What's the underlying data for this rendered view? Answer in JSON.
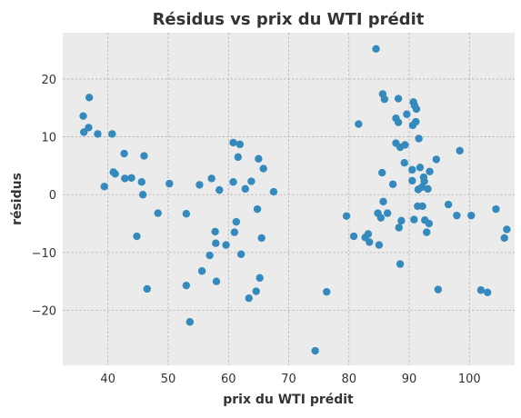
{
  "chart_data": {
    "type": "scatter",
    "title": "Résidus vs prix du WTI prédit",
    "xlabel": "prix du WTI prédit",
    "ylabel": "résidus",
    "xlim": [
      32.5,
      107.5
    ],
    "ylim": [
      -29.5,
      28
    ],
    "xticks": [
      40,
      50,
      60,
      70,
      80,
      90,
      100
    ],
    "yticks": [
      -20,
      -10,
      0,
      10,
      20
    ],
    "ytick_labels": [
      "−20",
      "−10",
      "0",
      "10",
      "20"
    ],
    "grid": true,
    "colors": {
      "background": "#ebebeb",
      "grid": "#b2b2b2",
      "point": "#348abd",
      "text": "#333333"
    },
    "series": [
      {
        "points": [
          [
            35.9,
            13.6
          ],
          [
            36.0,
            10.8
          ],
          [
            36.8,
            11.6
          ],
          [
            36.9,
            16.8
          ],
          [
            38.3,
            10.5
          ],
          [
            39.4,
            1.4
          ],
          [
            40.7,
            10.5
          ],
          [
            40.9,
            3.9
          ],
          [
            41.2,
            3.6
          ],
          [
            42.7,
            7.1
          ],
          [
            42.8,
            2.8
          ],
          [
            43.9,
            2.9
          ],
          [
            44.8,
            -7.2
          ],
          [
            45.6,
            2.2
          ],
          [
            45.8,
            0.0
          ],
          [
            46.0,
            6.7
          ],
          [
            46.5,
            -16.3
          ],
          [
            48.3,
            -3.2
          ],
          [
            50.2,
            1.9
          ],
          [
            53.0,
            -3.3
          ],
          [
            53.0,
            -15.7
          ],
          [
            53.6,
            -22.0
          ],
          [
            55.2,
            1.7
          ],
          [
            55.6,
            -13.2
          ],
          [
            56.9,
            -10.5
          ],
          [
            57.2,
            2.8
          ],
          [
            57.8,
            -6.4
          ],
          [
            57.9,
            -8.4
          ],
          [
            58.0,
            -15.0
          ],
          [
            58.5,
            0.8
          ],
          [
            59.6,
            -8.7
          ],
          [
            60.8,
            9.0
          ],
          [
            60.8,
            2.2
          ],
          [
            61.0,
            -6.5
          ],
          [
            61.3,
            -4.7
          ],
          [
            61.6,
            6.5
          ],
          [
            61.9,
            8.7
          ],
          [
            62.1,
            -10.3
          ],
          [
            62.8,
            1.0
          ],
          [
            63.4,
            -17.9
          ],
          [
            63.8,
            2.3
          ],
          [
            64.6,
            -16.7
          ],
          [
            64.8,
            -2.5
          ],
          [
            65.0,
            6.2
          ],
          [
            65.2,
            -14.4
          ],
          [
            65.5,
            -7.5
          ],
          [
            65.8,
            4.5
          ],
          [
            67.5,
            0.5
          ],
          [
            74.4,
            -27.0
          ],
          [
            76.3,
            -16.8
          ],
          [
            79.6,
            -3.7
          ],
          [
            80.8,
            -7.2
          ],
          [
            81.6,
            12.2
          ],
          [
            82.7,
            -7.4
          ],
          [
            83.2,
            -6.8
          ],
          [
            83.4,
            -8.2
          ],
          [
            84.5,
            25.2
          ],
          [
            84.8,
            -3.2
          ],
          [
            85.0,
            -8.7
          ],
          [
            85.3,
            -4.0
          ],
          [
            85.5,
            3.8
          ],
          [
            85.6,
            17.4
          ],
          [
            85.7,
            -1.2
          ],
          [
            85.9,
            16.5
          ],
          [
            86.4,
            -3.2
          ],
          [
            87.3,
            1.8
          ],
          [
            87.8,
            13.2
          ],
          [
            87.8,
            8.9
          ],
          [
            88.2,
            16.6
          ],
          [
            88.2,
            12.5
          ],
          [
            88.3,
            -5.7
          ],
          [
            88.5,
            8.2
          ],
          [
            88.5,
            -12.0
          ],
          [
            88.7,
            -4.5
          ],
          [
            89.2,
            5.5
          ],
          [
            89.3,
            8.6
          ],
          [
            89.6,
            13.9
          ],
          [
            90.5,
            4.3
          ],
          [
            90.5,
            2.4
          ],
          [
            90.6,
            12.0
          ],
          [
            90.7,
            16.0
          ],
          [
            90.8,
            -4.3
          ],
          [
            90.9,
            15.4
          ],
          [
            91.1,
            12.6
          ],
          [
            91.2,
            14.8
          ],
          [
            91.4,
            -2.0
          ],
          [
            91.5,
            0.9
          ],
          [
            91.6,
            9.7
          ],
          [
            91.8,
            4.7
          ],
          [
            92.1,
            1.3
          ],
          [
            92.2,
            -2.0
          ],
          [
            92.4,
            3.0
          ],
          [
            92.5,
            2.3
          ],
          [
            92.6,
            -4.4
          ],
          [
            92.9,
            -6.5
          ],
          [
            93.1,
            1.0
          ],
          [
            93.3,
            -5.0
          ],
          [
            93.4,
            4.0
          ],
          [
            94.5,
            6.1
          ],
          [
            94.8,
            -16.4
          ],
          [
            96.5,
            -1.7
          ],
          [
            97.9,
            -3.6
          ],
          [
            98.4,
            7.6
          ],
          [
            100.3,
            -3.6
          ],
          [
            101.9,
            -16.5
          ],
          [
            103.0,
            -16.9
          ],
          [
            104.4,
            -2.5
          ],
          [
            105.8,
            -7.5
          ],
          [
            106.2,
            -6.0
          ]
        ]
      }
    ]
  }
}
